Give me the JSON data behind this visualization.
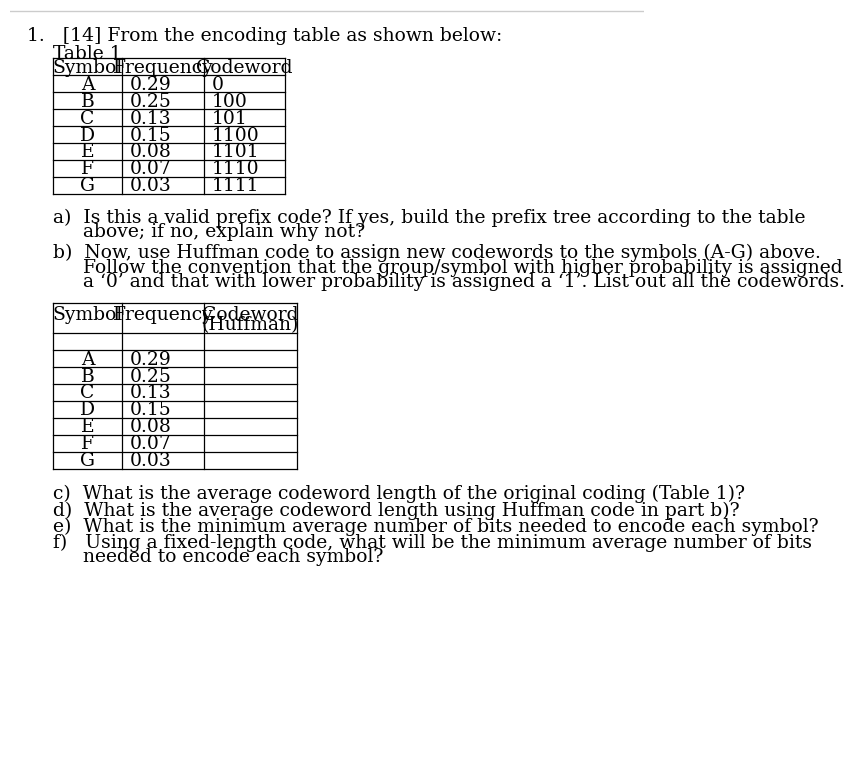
{
  "title_line1": "1.   [14] From the encoding table as shown below:",
  "table1_label": "Table 1",
  "table1_headers": [
    "Symbol",
    "Frequency",
    "Codeword"
  ],
  "table1_rows": [
    [
      "A",
      "0.29",
      "0"
    ],
    [
      "B",
      "0.25",
      "100"
    ],
    [
      "C",
      "0.13",
      "101"
    ],
    [
      "D",
      "0.15",
      "1100"
    ],
    [
      "E",
      "0.08",
      "1101"
    ],
    [
      "F",
      "0.07",
      "1110"
    ],
    [
      "G",
      "0.03",
      "1111"
    ]
  ],
  "qa_lines": [
    "a)  Is this a valid prefix code? If yes, build the prefix tree according to the table",
    "     above; if no, explain why not?"
  ],
  "qb_lines": [
    "b)  Now, use Huffman code to assign new codewords to the symbols (A-G) above.",
    "     Follow the convention that the group/symbol with higher probability is assigned",
    "     a ‘0’ and that with lower probability is assigned a ‘1’. List out all the codewords."
  ],
  "table2_header_line1": [
    "Symbol",
    "Frequency",
    "Codeword"
  ],
  "table2_header_line2": [
    "",
    "",
    "(Huffman)"
  ],
  "table2_rows": [
    [
      "A",
      "0.29",
      ""
    ],
    [
      "B",
      "0.25",
      ""
    ],
    [
      "C",
      "0.13",
      ""
    ],
    [
      "D",
      "0.15",
      ""
    ],
    [
      "E",
      "0.08",
      ""
    ],
    [
      "F",
      "0.07",
      ""
    ],
    [
      "G",
      "0.03",
      ""
    ]
  ],
  "qc": "c)  What is the average codeword length of the original coding (Table 1)?",
  "qd": "d)  What is the average codeword length using Huffman code in part b)?",
  "qe": "e)  What is the minimum average number of bits needed to encode each symbol?",
  "qf_lines": [
    "f)   Using a fixed-length code, what will be the minimum average number of bits",
    "     needed to encode each symbol?"
  ],
  "bg_color": "#ffffff",
  "text_color": "#000000",
  "line_color": "#000000",
  "border_color": "#cccccc",
  "font_size": 13.5,
  "table_font_size": 13.5
}
